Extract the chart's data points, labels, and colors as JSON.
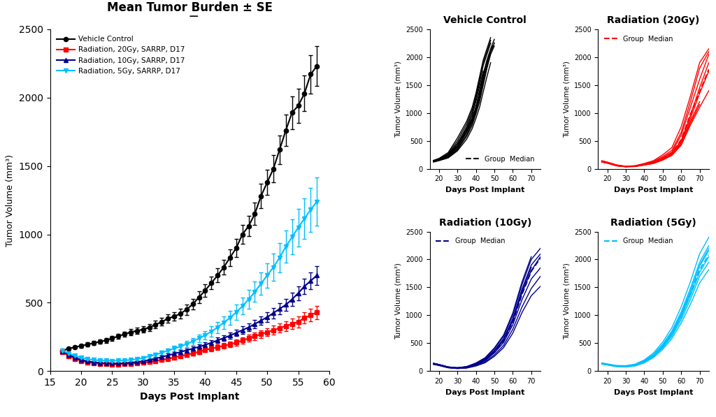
{
  "title_parts": [
    "Mean Tumor Burden ",
    " SE"
  ],
  "main_xlabel": "Days Post Implant",
  "main_ylabel": "Tumor Volume (mm³)",
  "subplot_ylabel": "Tumor Volume (mm³)",
  "subplot_xlabel": "Days Post Implant",
  "mean_days": [
    17,
    18,
    19,
    20,
    21,
    22,
    23,
    24,
    25,
    26,
    27,
    28,
    29,
    30,
    31,
    32,
    33,
    34,
    35,
    36,
    37,
    38,
    39,
    40,
    41,
    42,
    43,
    44,
    45,
    46,
    47,
    48,
    49,
    50,
    51,
    52,
    53,
    54,
    55,
    56,
    57,
    58
  ],
  "black_mean": [
    150,
    165,
    175,
    185,
    195,
    205,
    215,
    225,
    240,
    255,
    270,
    285,
    295,
    305,
    320,
    340,
    360,
    385,
    400,
    420,
    450,
    490,
    540,
    590,
    645,
    700,
    760,
    830,
    900,
    1000,
    1060,
    1150,
    1280,
    1380,
    1480,
    1620,
    1760,
    1890,
    1940,
    2030,
    2170,
    2230
  ],
  "black_se": [
    10,
    12,
    12,
    13,
    14,
    15,
    16,
    17,
    18,
    19,
    20,
    22,
    22,
    24,
    25,
    27,
    28,
    30,
    32,
    35,
    38,
    40,
    42,
    45,
    48,
    52,
    55,
    60,
    65,
    70,
    75,
    80,
    88,
    92,
    98,
    105,
    115,
    120,
    125,
    130,
    140,
    145
  ],
  "red_mean": [
    140,
    110,
    90,
    75,
    65,
    58,
    55,
    52,
    50,
    50,
    52,
    55,
    58,
    62,
    68,
    75,
    82,
    90,
    100,
    110,
    120,
    130,
    142,
    155,
    165,
    175,
    185,
    195,
    210,
    225,
    240,
    255,
    270,
    285,
    300,
    315,
    330,
    345,
    360,
    390,
    410,
    430
  ],
  "red_se": [
    10,
    10,
    9,
    8,
    7,
    7,
    6,
    6,
    6,
    6,
    6,
    7,
    7,
    8,
    8,
    9,
    10,
    11,
    12,
    13,
    14,
    15,
    16,
    17,
    18,
    19,
    20,
    21,
    22,
    24,
    26,
    27,
    28,
    30,
    32,
    34,
    36,
    38,
    40,
    43,
    45,
    48
  ],
  "darkblue_mean": [
    145,
    120,
    100,
    82,
    72,
    65,
    60,
    58,
    56,
    56,
    58,
    62,
    67,
    73,
    82,
    92,
    103,
    115,
    127,
    140,
    152,
    165,
    178,
    192,
    208,
    225,
    242,
    260,
    280,
    300,
    320,
    345,
    370,
    395,
    425,
    455,
    485,
    525,
    570,
    620,
    660,
    700
  ],
  "darkblue_se": [
    10,
    10,
    9,
    8,
    7,
    7,
    6,
    6,
    6,
    6,
    6,
    7,
    8,
    8,
    9,
    10,
    11,
    12,
    13,
    14,
    15,
    16,
    17,
    18,
    19,
    20,
    21,
    22,
    24,
    26,
    28,
    30,
    32,
    35,
    38,
    40,
    43,
    47,
    52,
    57,
    62,
    68
  ],
  "cyan_mean": [
    148,
    130,
    112,
    98,
    88,
    82,
    78,
    76,
    75,
    76,
    78,
    82,
    88,
    96,
    108,
    120,
    135,
    150,
    165,
    180,
    198,
    218,
    240,
    263,
    290,
    320,
    355,
    390,
    430,
    475,
    525,
    580,
    640,
    700,
    760,
    830,
    910,
    980,
    1050,
    1115,
    1180,
    1240
  ],
  "cyan_se": [
    10,
    10,
    9,
    8,
    8,
    8,
    8,
    8,
    8,
    8,
    8,
    9,
    10,
    11,
    12,
    14,
    15,
    17,
    18,
    20,
    22,
    25,
    28,
    32,
    36,
    40,
    45,
    50,
    56,
    62,
    68,
    75,
    82,
    90,
    98,
    108,
    118,
    128,
    138,
    148,
    160,
    175
  ],
  "vc_individual_x": [
    [
      17,
      20,
      25,
      30,
      35,
      38,
      40,
      42,
      44,
      46,
      48,
      50
    ],
    [
      17,
      20,
      25,
      30,
      35,
      38,
      40,
      42,
      44,
      46,
      48,
      50
    ],
    [
      17,
      20,
      25,
      30,
      35,
      38,
      40,
      42,
      44,
      46,
      48,
      50
    ],
    [
      17,
      20,
      25,
      30,
      35,
      38,
      40,
      42,
      44,
      46,
      48
    ],
    [
      17,
      20,
      25,
      30,
      35,
      38,
      40,
      42,
      44,
      46,
      48
    ],
    [
      17,
      20,
      25,
      30,
      35,
      38,
      40,
      42,
      44,
      46,
      48
    ],
    [
      17,
      20,
      25,
      30,
      35,
      38,
      40,
      42,
      44,
      46,
      48
    ],
    [
      17,
      20,
      25,
      30,
      35,
      38,
      40,
      42,
      44,
      46,
      48
    ],
    [
      17,
      20,
      25,
      30,
      35,
      38,
      40,
      42,
      44,
      46,
      48
    ],
    [
      17,
      20,
      25,
      30,
      35,
      38,
      40,
      42,
      44
    ]
  ],
  "vc_individual_y": [
    [
      130,
      155,
      220,
      380,
      650,
      850,
      1050,
      1300,
      1600,
      1900,
      2100,
      2250
    ],
    [
      140,
      170,
      240,
      420,
      700,
      900,
      1100,
      1400,
      1700,
      1950,
      2150,
      2320
    ],
    [
      125,
      148,
      200,
      340,
      580,
      780,
      980,
      1200,
      1500,
      1800,
      2050,
      2200
    ],
    [
      135,
      160,
      250,
      450,
      750,
      1000,
      1250,
      1550,
      1850,
      2050,
      2250
    ],
    [
      145,
      175,
      270,
      500,
      800,
      1050,
      1300,
      1600,
      1900,
      2100,
      2300
    ],
    [
      120,
      145,
      195,
      320,
      530,
      720,
      900,
      1100,
      1380,
      1650,
      1900
    ],
    [
      150,
      185,
      290,
      550,
      850,
      1100,
      1350,
      1650,
      1950,
      2150,
      2350
    ],
    [
      132,
      158,
      230,
      400,
      670,
      880,
      1080,
      1350,
      1650,
      1900,
      2100
    ],
    [
      128,
      152,
      210,
      360,
      610,
      820,
      1020,
      1250,
      1550,
      1820,
      2080
    ],
    [
      138,
      165,
      255,
      460,
      720,
      950,
      1200,
      1480,
      1750
    ]
  ],
  "vc_median_x": [
    17,
    20,
    25,
    30,
    35,
    38,
    40,
    42,
    44,
    46,
    48,
    50
  ],
  "vc_median_y": [
    135,
    162,
    235,
    410,
    675,
    885,
    1090,
    1350,
    1650,
    1900,
    2100,
    2260
  ],
  "rad20_individual_x": [
    [
      17,
      20,
      25,
      30,
      35,
      40,
      45,
      50,
      55,
      60,
      65,
      70,
      75
    ],
    [
      17,
      20,
      25,
      30,
      35,
      40,
      45,
      50,
      55,
      60,
      65,
      70,
      75
    ],
    [
      17,
      20,
      25,
      30,
      35,
      40,
      45,
      50,
      55,
      60,
      65,
      70,
      75
    ],
    [
      17,
      20,
      25,
      30,
      35,
      40,
      45,
      50,
      55,
      60,
      65,
      70,
      75
    ],
    [
      17,
      20,
      25,
      30,
      35,
      40,
      45,
      50,
      55,
      60,
      65,
      70,
      75
    ],
    [
      17,
      20,
      25,
      30,
      35,
      40,
      45,
      50,
      55,
      60,
      65,
      70,
      75
    ],
    [
      17,
      20,
      25,
      30,
      35,
      40,
      45,
      50,
      55,
      60,
      65,
      70
    ],
    [
      17,
      20,
      25,
      30,
      35,
      40,
      45,
      50,
      55,
      60,
      65,
      70
    ]
  ],
  "rad20_individual_y": [
    [
      130,
      110,
      60,
      40,
      50,
      80,
      120,
      200,
      300,
      600,
      1100,
      1600,
      2050
    ],
    [
      140,
      115,
      65,
      42,
      45,
      75,
      110,
      180,
      280,
      500,
      950,
      1450,
      1900
    ],
    [
      125,
      105,
      55,
      38,
      42,
      72,
      105,
      170,
      260,
      480,
      900,
      1350,
      1750
    ],
    [
      135,
      112,
      62,
      41,
      48,
      85,
      130,
      220,
      330,
      650,
      1200,
      1800,
      2100
    ],
    [
      145,
      120,
      70,
      45,
      55,
      95,
      145,
      250,
      380,
      750,
      1300,
      1900,
      2150
    ],
    [
      120,
      100,
      52,
      35,
      40,
      65,
      95,
      155,
      240,
      420,
      780,
      1100,
      1400
    ],
    [
      128,
      108,
      58,
      39,
      44,
      70,
      100,
      165,
      255,
      460,
      850,
      1200
    ],
    [
      122,
      102,
      54,
      37,
      43,
      68,
      98,
      160,
      250,
      440,
      820,
      1150
    ]
  ],
  "rad20_median_x": [
    17,
    20,
    25,
    30,
    35,
    40,
    45,
    50,
    55,
    60,
    65,
    70,
    75
  ],
  "rad20_median_y": [
    128,
    108,
    58,
    40,
    46,
    76,
    113,
    185,
    280,
    520,
    975,
    1380,
    1780
  ],
  "rad10_individual_x": [
    [
      17,
      20,
      25,
      30,
      35,
      40,
      45,
      50,
      55,
      60,
      65,
      70,
      75
    ],
    [
      17,
      20,
      25,
      30,
      35,
      40,
      45,
      50,
      55,
      60,
      65,
      70,
      75
    ],
    [
      17,
      20,
      25,
      30,
      35,
      40,
      45,
      50,
      55,
      60,
      65,
      70,
      75
    ],
    [
      17,
      20,
      25,
      30,
      35,
      40,
      45,
      50,
      55,
      60,
      65,
      70,
      75
    ],
    [
      17,
      20,
      25,
      30,
      35,
      40,
      45,
      50,
      55,
      60,
      65,
      70,
      75
    ],
    [
      17,
      20,
      25,
      30,
      35,
      40,
      45,
      50,
      55,
      60,
      65,
      70,
      75
    ],
    [
      17,
      20,
      25,
      30,
      35,
      40,
      45,
      50,
      55,
      60,
      65,
      70
    ],
    [
      17,
      20,
      25,
      30,
      35,
      40,
      45,
      50,
      55,
      60,
      65,
      70
    ]
  ],
  "rad10_individual_y": [
    [
      132,
      112,
      70,
      55,
      70,
      120,
      200,
      350,
      550,
      900,
      1400,
      1800,
      2050
    ],
    [
      140,
      118,
      75,
      60,
      80,
      140,
      230,
      400,
      620,
      1000,
      1550,
      2000,
      2200
    ],
    [
      125,
      105,
      62,
      48,
      58,
      100,
      165,
      290,
      460,
      750,
      1150,
      1480,
      1700
    ],
    [
      135,
      115,
      72,
      58,
      75,
      130,
      215,
      370,
      580,
      940,
      1470,
      1900,
      2100
    ],
    [
      120,
      100,
      60,
      46,
      55,
      92,
      150,
      265,
      420,
      680,
      1050,
      1350,
      1520
    ],
    [
      128,
      108,
      65,
      52,
      65,
      110,
      185,
      325,
      510,
      830,
      1280,
      1650,
      1850
    ],
    [
      138,
      116,
      73,
      57,
      72,
      125,
      205,
      360,
      565,
      920,
      1440,
      1860
    ],
    [
      142,
      120,
      76,
      62,
      82,
      145,
      240,
      415,
      645,
      1040,
      1600,
      2050
    ]
  ],
  "rad10_median_x": [
    17,
    20,
    25,
    30,
    35,
    40,
    45,
    50,
    55,
    60,
    65,
    70,
    75
  ],
  "rad10_median_y": [
    133,
    113,
    68,
    55,
    70,
    120,
    195,
    345,
    545,
    885,
    1380,
    1790,
    2030
  ],
  "rad5_individual_x": [
    [
      17,
      20,
      25,
      30,
      35,
      40,
      45,
      50,
      55,
      60,
      65,
      70,
      75
    ],
    [
      17,
      20,
      25,
      30,
      35,
      40,
      45,
      50,
      55,
      60,
      65,
      70,
      75
    ],
    [
      17,
      20,
      25,
      30,
      35,
      40,
      45,
      50,
      55,
      60,
      65,
      70,
      75
    ],
    [
      17,
      20,
      25,
      30,
      35,
      40,
      45,
      50,
      55,
      60,
      65,
      70,
      75
    ],
    [
      17,
      20,
      25,
      30,
      35,
      40,
      45,
      50,
      55,
      60,
      65,
      70,
      75
    ],
    [
      17,
      20,
      25,
      30,
      35,
      40,
      45,
      50,
      55,
      60,
      65,
      70,
      75
    ],
    [
      17,
      20,
      25,
      30,
      35,
      40,
      45,
      50,
      55,
      60,
      65,
      70,
      75
    ]
  ],
  "rad5_individual_y": [
    [
      135,
      118,
      90,
      85,
      105,
      170,
      280,
      450,
      680,
      1000,
      1400,
      1900,
      2200
    ],
    [
      148,
      130,
      102,
      98,
      125,
      200,
      325,
      520,
      780,
      1150,
      1600,
      2100,
      2400
    ],
    [
      128,
      112,
      84,
      78,
      98,
      158,
      260,
      415,
      625,
      920,
      1280,
      1700,
      1950
    ],
    [
      140,
      122,
      94,
      90,
      115,
      185,
      300,
      480,
      720,
      1060,
      1480,
      1950,
      2250
    ],
    [
      125,
      110,
      80,
      74,
      92,
      148,
      242,
      388,
      585,
      860,
      1195,
      1580,
      1820
    ],
    [
      138,
      120,
      92,
      87,
      110,
      176,
      290,
      462,
      698,
      1025,
      1430,
      1880,
      2160
    ],
    [
      132,
      115,
      87,
      82,
      103,
      165,
      272,
      435,
      655,
      965,
      1345,
      1770,
      2050
    ]
  ],
  "rad5_median_x": [
    17,
    20,
    25,
    30,
    35,
    40,
    45,
    50,
    55,
    60,
    65,
    70,
    75
  ],
  "rad5_median_y": [
    135,
    118,
    90,
    85,
    105,
    168,
    276,
    443,
    668,
    985,
    1375,
    1815,
    2085
  ],
  "legend_labels": [
    "Vehicle Control",
    "Radiation, 20Gy, SARRP, D17",
    "Radiation, 10Gy, SARRP, D17",
    "Radiation, 5Gy, SARRP, D17"
  ],
  "group_median_label": "Group  Median",
  "colors": {
    "black": "#000000",
    "red": "#ff0000",
    "darkblue": "#00008B",
    "cyan": "#00BFFF"
  }
}
